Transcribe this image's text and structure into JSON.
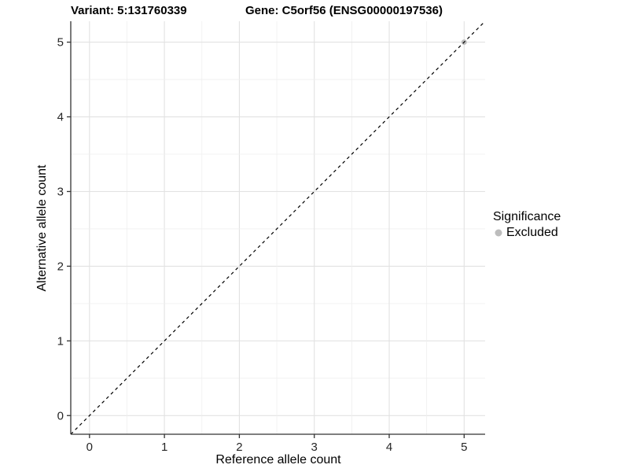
{
  "figure": {
    "title_left": "Variant: 5:131760339",
    "title_right": "Gene: C5orf56 (ENSG00000197536)"
  },
  "chart_data": {
    "type": "scatter",
    "title": "Variant: 5:131760339   Gene: C5orf56 (ENSG00000197536)",
    "xlabel": "Reference allele count",
    "ylabel": "Alternative allele count",
    "xlim": [
      -0.25,
      5.28
    ],
    "ylim": [
      -0.25,
      5.28
    ],
    "xticks": [
      0,
      1,
      2,
      3,
      4,
      5
    ],
    "yticks": [
      0,
      1,
      2,
      3,
      4,
      5
    ],
    "grid": "major and minor, minor step 0.5",
    "reference_line": {
      "description": "identity line y = x",
      "slope": 1,
      "intercept": 0,
      "dash": "4 4",
      "color": "#000000"
    },
    "series": [
      {
        "name": "Excluded",
        "color": "#bdbdbd",
        "points": [
          {
            "x": 5,
            "y": 5
          }
        ]
      }
    ],
    "legend": {
      "title": "Significance",
      "position": "right",
      "items": [
        {
          "label": "Excluded",
          "color": "#bdbdbd"
        }
      ]
    },
    "colors": {
      "grid_major": "#e2e2e2",
      "grid_minor": "#efefef",
      "axis_line": "#333333",
      "tick_text": "#262626",
      "panel_bg": "#ffffff"
    }
  }
}
